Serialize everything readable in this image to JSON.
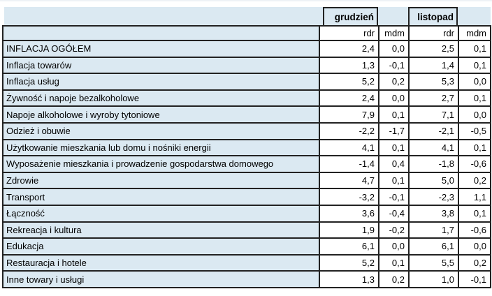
{
  "colors": {
    "header_bg": "#dbe9f2",
    "cell_bg": "#ffffff",
    "border": "#222222",
    "text": "#000000"
  },
  "header": {
    "month_groups": [
      {
        "label": "grudzień"
      },
      {
        "label": "listopad"
      }
    ],
    "sub_columns": [
      "rdr",
      "mdm",
      "rdr",
      "mdm"
    ]
  },
  "rows": [
    {
      "label": "INFLACJA OGÓŁEM",
      "values": [
        "2,4",
        "0,0",
        "2,5",
        "0,1"
      ]
    },
    {
      "label": "Inflacja towarów",
      "values": [
        "1,3",
        "-0,1",
        "1,4",
        "0,1"
      ]
    },
    {
      "label": "Inflacja usług",
      "values": [
        "5,2",
        "0,2",
        "5,3",
        "0,0"
      ]
    },
    {
      "label": "Żywność i napoje bezalkoholowe",
      "values": [
        "2,4",
        "0,0",
        "2,7",
        "0,1"
      ]
    },
    {
      "label": "Napoje alkoholowe i wyroby tytoniowe",
      "values": [
        "7,9",
        "0,1",
        "7,1",
        "0,0"
      ]
    },
    {
      "label": "Odzież i obuwie",
      "values": [
        "-2,2",
        "-1,7",
        "-2,1",
        "-0,5"
      ]
    },
    {
      "label": "Użytkowanie mieszkania lub domu i nośniki energii",
      "values": [
        "4,1",
        "0,1",
        "4,1",
        "0,1"
      ]
    },
    {
      "label": "Wyposażenie mieszkania i prowadzenie gospodarstwa domowego",
      "values": [
        "-1,4",
        "0,4",
        "-1,8",
        "-0,6"
      ]
    },
    {
      "label": "Zdrowie",
      "values": [
        "4,7",
        "0,1",
        "5,0",
        "0,2"
      ]
    },
    {
      "label": "Transport",
      "values": [
        "-3,2",
        "-0,1",
        "-2,3",
        "1,1"
      ]
    },
    {
      "label": "Łączność",
      "values": [
        "3,6",
        "-0,4",
        "3,8",
        "0,1"
      ]
    },
    {
      "label": "Rekreacja i kultura",
      "values": [
        "1,9",
        "-0,2",
        "1,7",
        "-0,6"
      ]
    },
    {
      "label": "Edukacja",
      "values": [
        "6,1",
        "0,0",
        "6,1",
        "0,0"
      ]
    },
    {
      "label": "Restauracja i hotele",
      "values": [
        "5,2",
        "0,1",
        "5,5",
        "0,2"
      ]
    },
    {
      "label": "Inne towary i usługi",
      "values": [
        "1,3",
        "0,2",
        "1,0",
        "-0,1"
      ]
    }
  ],
  "chart_data": {
    "type": "table",
    "columns": [
      "",
      "grudzień rdr",
      "grudzień mdm",
      "listopad rdr",
      "listopad mdm"
    ],
    "rows": [
      [
        "INFLACJA OGÓŁEM",
        2.4,
        0.0,
        2.5,
        0.1
      ],
      [
        "Inflacja towarów",
        1.3,
        -0.1,
        1.4,
        0.1
      ],
      [
        "Inflacja usług",
        5.2,
        0.2,
        5.3,
        0.0
      ],
      [
        "Żywność i napoje bezalkoholowe",
        2.4,
        0.0,
        2.7,
        0.1
      ],
      [
        "Napoje alkoholowe i wyroby tytoniowe",
        7.9,
        0.1,
        7.1,
        0.0
      ],
      [
        "Odzież i obuwie",
        -2.2,
        -1.7,
        -2.1,
        -0.5
      ],
      [
        "Użytkowanie mieszkania lub domu i nośniki energii",
        4.1,
        0.1,
        4.1,
        0.1
      ],
      [
        "Wyposażenie mieszkania i prowadzenie gospodarstwa domowego",
        -1.4,
        0.4,
        -1.8,
        -0.6
      ],
      [
        "Zdrowie",
        4.7,
        0.1,
        5.0,
        0.2
      ],
      [
        "Transport",
        -3.2,
        -0.1,
        -2.3,
        1.1
      ],
      [
        "Łączność",
        3.6,
        -0.4,
        3.8,
        0.1
      ],
      [
        "Rekreacja i kultura",
        1.9,
        -0.2,
        1.7,
        -0.6
      ],
      [
        "Edukacja",
        6.1,
        0.0,
        6.1,
        0.0
      ],
      [
        "Restauracja i hotele",
        5.2,
        0.1,
        5.5,
        0.2
      ],
      [
        "Inne towary i usługi",
        1.3,
        0.2,
        1.0,
        -0.1
      ]
    ]
  }
}
